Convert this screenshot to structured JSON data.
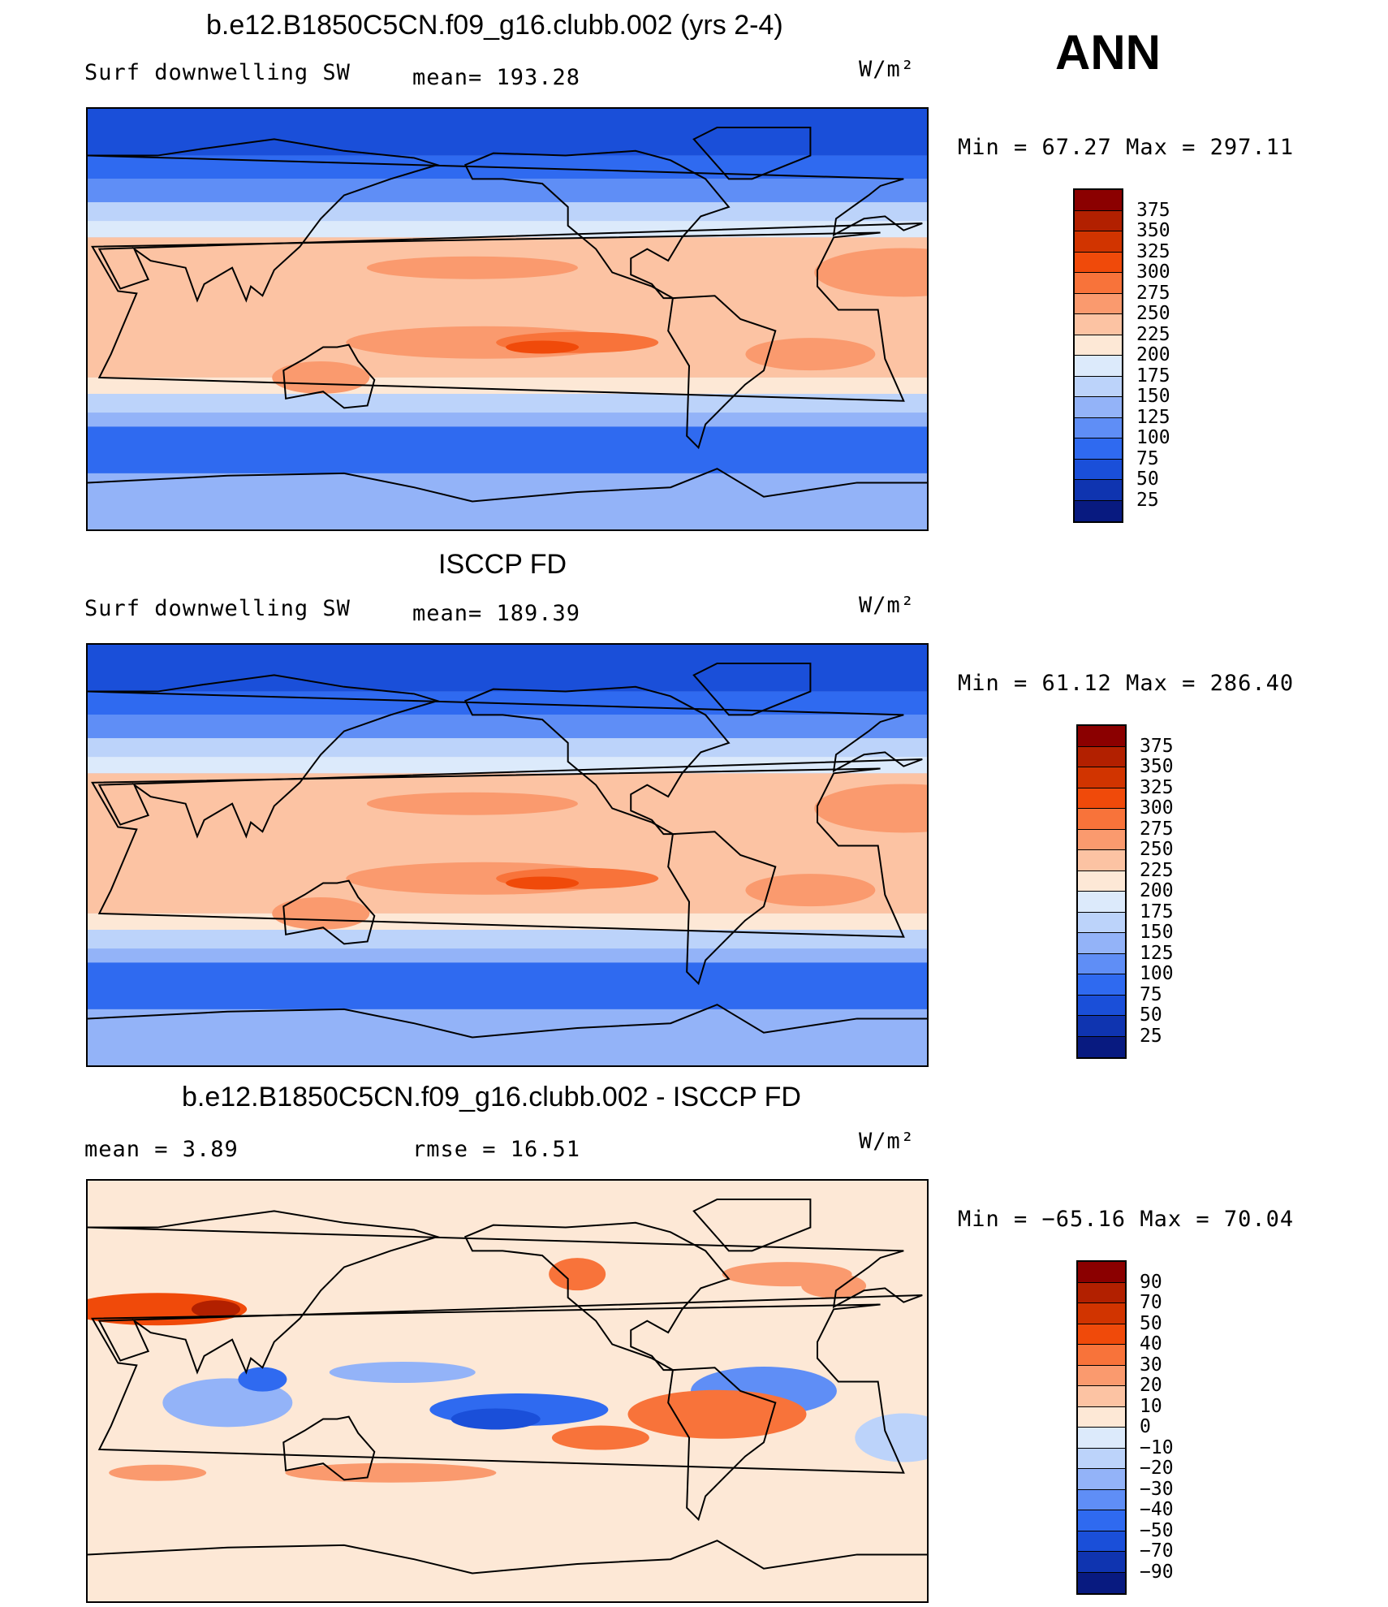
{
  "season": "ANN",
  "panels": [
    {
      "title": "b.e12.B1850C5CN.f09_g16.clubb.002 (yrs 2-4)",
      "left_label": "Surf downwelling SW",
      "mid_label": "mean= 193.28",
      "units": "W/m²",
      "minmax": "Min =   67.27 Max = 297.11",
      "colorbar_labels": [
        "375",
        "350",
        "325",
        "300",
        "275",
        "250",
        "225",
        "200",
        "175",
        "150",
        "125",
        "100",
        "75",
        "50",
        "25"
      ],
      "colorbar_colors": [
        "#8b0000",
        "#b22000",
        "#d13400",
        "#f04a0a",
        "#f8733a",
        "#fa9a6e",
        "#fcc3a3",
        "#fde8d6",
        "#dceafb",
        "#bcd3fa",
        "#93b3f8",
        "#5f8ef6",
        "#2f6af0",
        "#1a4fd9",
        "#0f34b0",
        "#081a80"
      ],
      "map_style": "model"
    },
    {
      "title": "ISCCP FD",
      "left_label": "Surf downwelling SW",
      "mid_label": "mean= 189.39",
      "units": "W/m²",
      "minmax": "Min =   61.12 Max = 286.40",
      "colorbar_labels": [
        "375",
        "350",
        "325",
        "300",
        "275",
        "250",
        "225",
        "200",
        "175",
        "150",
        "125",
        "100",
        "75",
        "50",
        "25"
      ],
      "colorbar_colors": [
        "#8b0000",
        "#b22000",
        "#d13400",
        "#f04a0a",
        "#f8733a",
        "#fa9a6e",
        "#fcc3a3",
        "#fde8d6",
        "#dceafb",
        "#bcd3fa",
        "#93b3f8",
        "#5f8ef6",
        "#2f6af0",
        "#1a4fd9",
        "#0f34b0",
        "#081a80"
      ],
      "map_style": "obs"
    },
    {
      "title": "b.e12.B1850C5CN.f09_g16.clubb.002 - ISCCP FD",
      "left_label": "mean =    3.89",
      "mid_label": "rmse =   16.51",
      "units": "W/m²",
      "minmax": "Min = −65.16 Max =   70.04",
      "colorbar_labels": [
        "90",
        "70",
        "50",
        "40",
        "30",
        "20",
        "10",
        "0",
        "−10",
        "−20",
        "−30",
        "−40",
        "−50",
        "−70",
        "−90"
      ],
      "colorbar_colors": [
        "#8b0000",
        "#b22000",
        "#d13400",
        "#f04a0a",
        "#f8733a",
        "#fa9a6e",
        "#fcc3a3",
        "#fde8d6",
        "#dceafb",
        "#bcd3fa",
        "#93b3f8",
        "#5f8ef6",
        "#2f6af0",
        "#1a4fd9",
        "#0f34b0",
        "#081a80"
      ],
      "map_style": "diff"
    }
  ]
}
